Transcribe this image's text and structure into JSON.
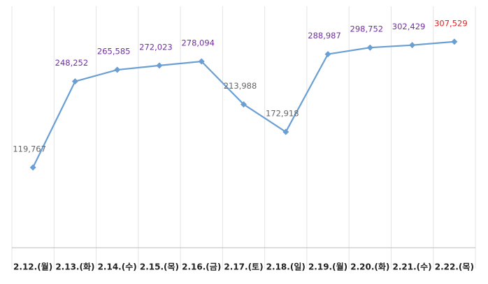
{
  "chart_data": {
    "type": "line",
    "categories": [
      "2.12.(월)",
      "2.13.(화)",
      "2.14.(수)",
      "2.15.(목)",
      "2.16.(금)",
      "2.17.(토)",
      "2.18.(일)",
      "2.19.(월)",
      "2.20.(화)",
      "2.21.(수)",
      "2.22.(목)"
    ],
    "values": [
      119767,
      248252,
      265585,
      272023,
      278094,
      213988,
      172918,
      288987,
      298752,
      302429,
      307529
    ],
    "value_labels": [
      "119,767",
      "248,252",
      "265,585",
      "272,023",
      "278,094",
      "213,988",
      "172,918",
      "288,987",
      "298,752",
      "302,429",
      "307,529"
    ],
    "value_label_colors": [
      "#666666",
      "#7030a0",
      "#7030a0",
      "#7030a0",
      "#7030a0",
      "#666666",
      "#666666",
      "#7030a0",
      "#7030a0",
      "#7030a0",
      "#e02020"
    ],
    "color": "#6a9fd4",
    "ylim": [
      0,
      350000
    ]
  }
}
